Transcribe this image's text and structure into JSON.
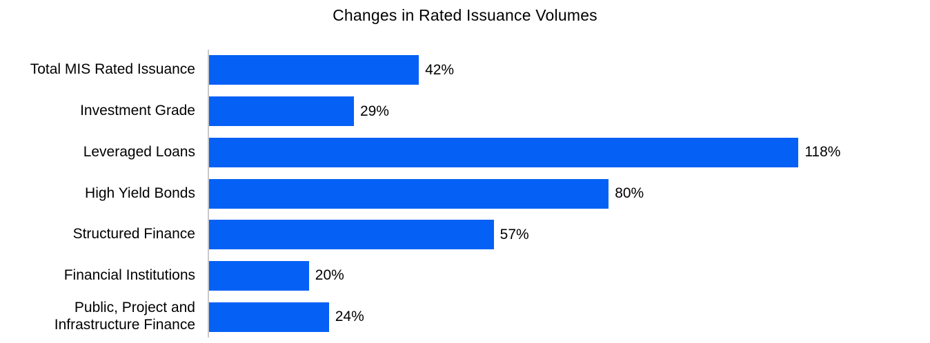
{
  "chart_data": {
    "type": "bar",
    "orientation": "horizontal",
    "title": "Changes in Rated Issuance Volumes",
    "categories": [
      "Total MIS Rated Issuance",
      "Investment Grade",
      "Leveraged Loans",
      "High Yield Bonds",
      "Structured Finance",
      "Financial Institutions",
      "Public, Project and\nInfrastructure Finance"
    ],
    "values": [
      42,
      29,
      118,
      80,
      57,
      20,
      24
    ],
    "value_labels": [
      "42%",
      "29%",
      "118%",
      "80%",
      "57%",
      "20%",
      "24%"
    ],
    "unit": "%",
    "xlim": [
      0,
      145
    ],
    "grid": false,
    "legend": null,
    "value_label_position": "outside-end",
    "bar_color": "#0561f5",
    "axis_line_color": "#c9c9c9",
    "text_color": "#000000",
    "background_color": "#ffffff"
  }
}
